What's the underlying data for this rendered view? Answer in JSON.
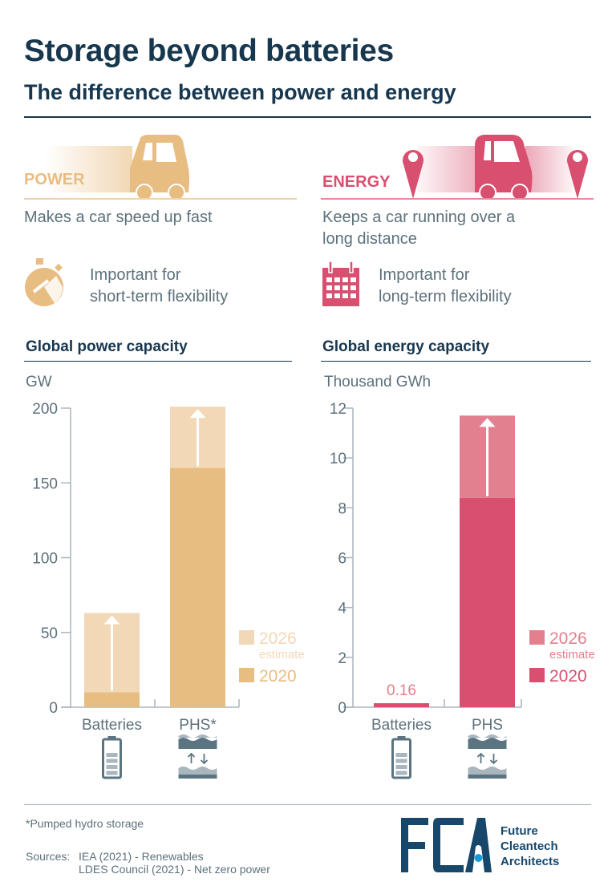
{
  "header": {
    "title": "Storage beyond batteries",
    "subtitle": "The difference between power and energy"
  },
  "power": {
    "keyword": "POWER",
    "description": "Makes a car speed up fast",
    "importance_line1": "Important for",
    "importance_line2": "short-term flexibility",
    "icons": [
      "car-icon",
      "stopwatch-icon"
    ]
  },
  "energy": {
    "keyword": "ENERGY",
    "description_line1": "Keeps a car running over a",
    "description_line2": "long distance",
    "importance_line1": "Important for",
    "importance_line2": "long-term flexibility",
    "icons": [
      "location-pin-icon",
      "car-icon",
      "calendar-icon"
    ]
  },
  "colors": {
    "power_2020": "#e8bd82",
    "power_2026": "#f2d8b6",
    "energy_2020": "#d94f6f",
    "energy_2026": "#e3808f",
    "text": "#5d717c",
    "navy": "#17374f",
    "logo_dot": "#1a9bd7"
  },
  "chart_data": [
    {
      "type": "bar",
      "title": "Global power capacity",
      "ylabel": "GW",
      "categories": [
        "Batteries",
        "PHS*"
      ],
      "category_icons": [
        "battery-icon",
        "pumped-hydro-icon"
      ],
      "ylim": [
        0,
        200
      ],
      "yticks": [
        0,
        50,
        100,
        150,
        200
      ],
      "series": [
        {
          "name": "2020",
          "values": [
            10,
            160
          ]
        },
        {
          "name": "2026",
          "name_note": "estimate",
          "values": [
            63,
            201
          ]
        }
      ],
      "legend_placement": "right",
      "grid": false
    },
    {
      "type": "bar",
      "title": "Global energy capacity",
      "ylabel": "Thousand GWh",
      "categories": [
        "Batteries",
        "PHS"
      ],
      "category_icons": [
        "battery-icon",
        "pumped-hydro-icon"
      ],
      "ylim": [
        0,
        12
      ],
      "yticks": [
        0,
        2,
        4,
        6,
        8,
        10,
        12
      ],
      "series": [
        {
          "name": "2020",
          "values": [
            0.16,
            8.4
          ]
        },
        {
          "name": "2026",
          "name_note": "estimate",
          "values": [
            0.16,
            11.7
          ]
        }
      ],
      "data_labels": [
        "0.16",
        ""
      ],
      "legend_placement": "right",
      "grid": false
    }
  ],
  "footer": {
    "footnote": "*Pumped hydro storage",
    "sources_label": "Sources:",
    "source1": "IEA (2021) - Renewables",
    "source2": "LDES Council (2021) - Net zero power",
    "logo_letters": "FCA",
    "logo_line1": "Future",
    "logo_line2": "Cleantech",
    "logo_line3": "Architects"
  }
}
